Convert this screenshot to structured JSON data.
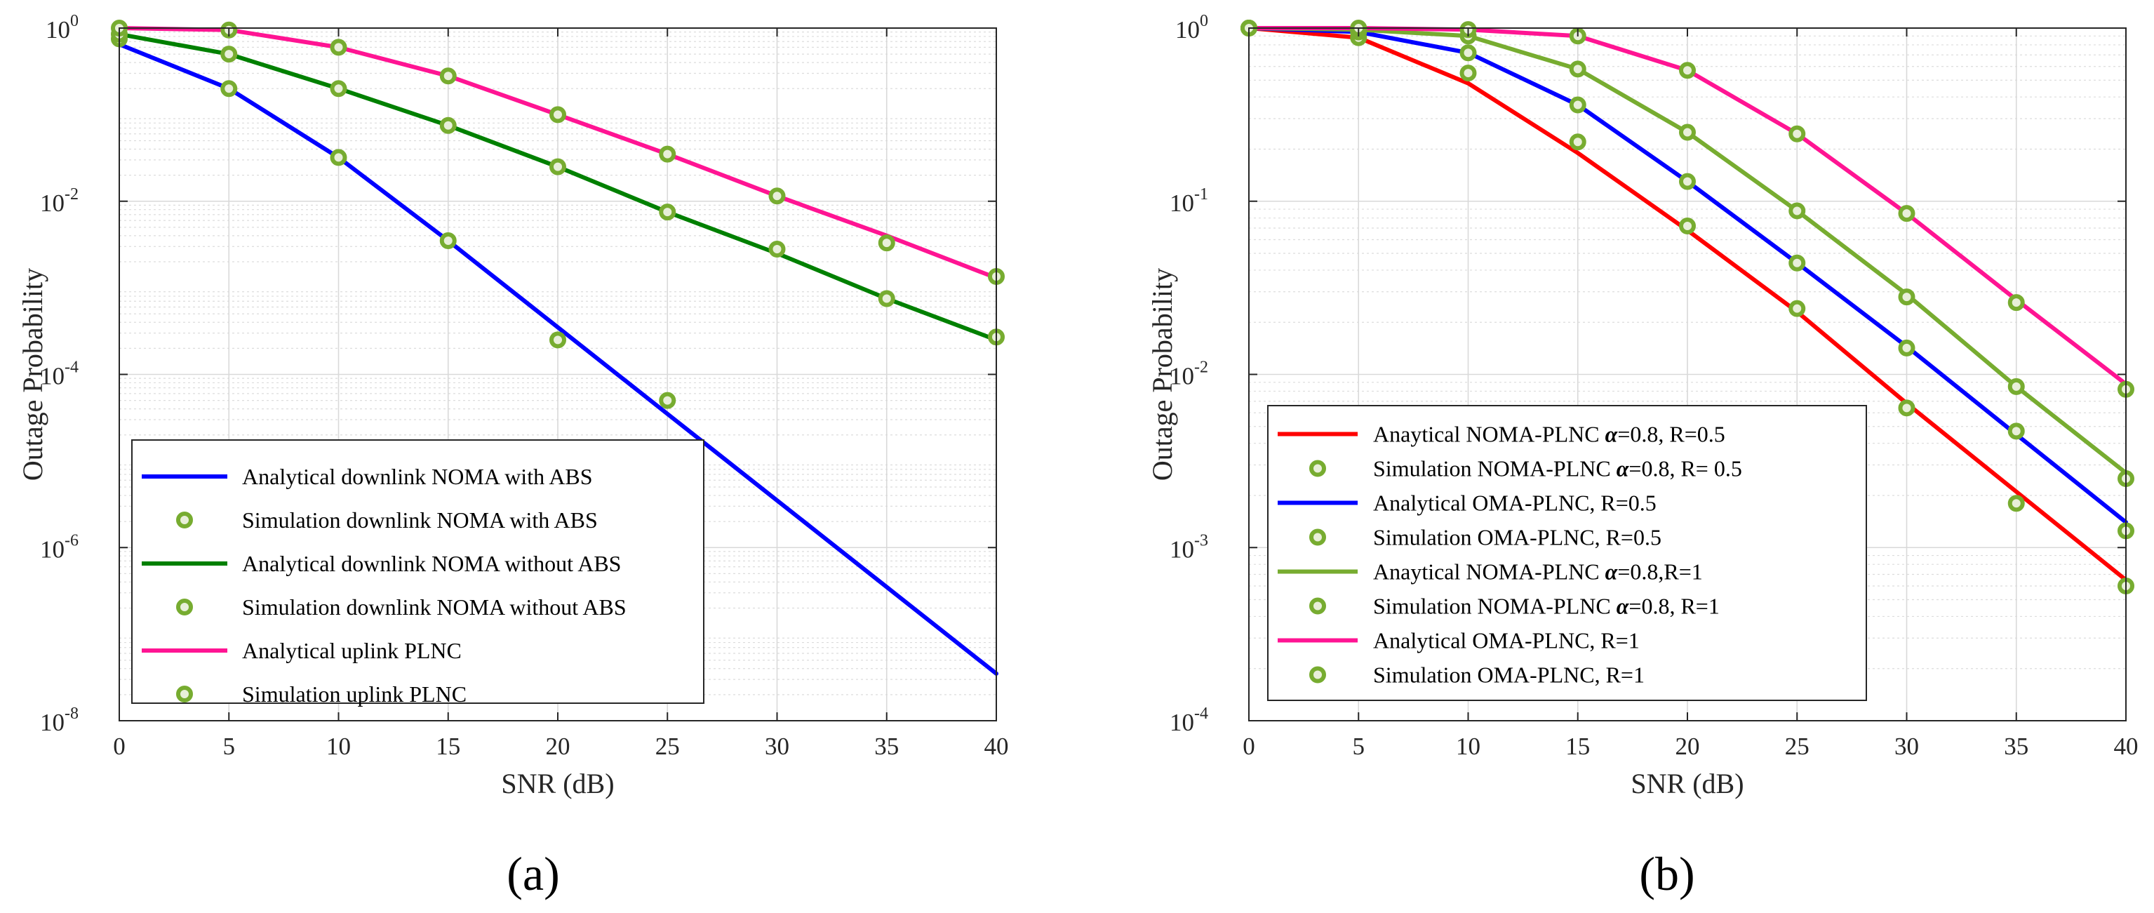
{
  "chart_data": [
    {
      "type": "line",
      "panel_label": "(a)",
      "xlabel": "SNR  (dB)",
      "ylabel": "Outage Probability",
      "yscale": "log",
      "xlim": [
        0,
        40
      ],
      "ylim": [
        1e-08,
        1
      ],
      "grid": true,
      "legend_position": "bottom-left",
      "x_ticks": [
        "0",
        "5",
        "10",
        "15",
        "20",
        "25",
        "30",
        "35",
        "40"
      ],
      "y_ticks": [
        {
          "base": "10",
          "exp": "0"
        },
        {
          "base": "10",
          "exp": "-2"
        },
        {
          "base": "10",
          "exp": "-4"
        },
        {
          "base": "10",
          "exp": "-6"
        },
        {
          "base": "10",
          "exp": "-8"
        }
      ],
      "series": [
        {
          "name": "Analytical downlink NOMA with ABS",
          "style": "line",
          "color": "#0000ff",
          "x": [
            0,
            5,
            10,
            15,
            20,
            25,
            30,
            35,
            40
          ],
          "y": [
            0.65,
            0.2,
            0.032,
            0.0035,
            0.00035,
            3.5e-05,
            3.5e-06,
            3.5e-07,
            3.5e-08
          ]
        },
        {
          "name": "Simulation downlink NOMA with ABS",
          "style": "marker",
          "color": "#77ac30",
          "x": [
            0,
            5,
            10,
            15,
            20,
            25
          ],
          "y": [
            0.75,
            0.2,
            0.032,
            0.0035,
            0.00025,
            5e-05
          ]
        },
        {
          "name": "Analytical downlink NOMA without ABS",
          "style": "line",
          "color": "#008000",
          "x": [
            0,
            5,
            10,
            15,
            20,
            25,
            30,
            35,
            40
          ],
          "y": [
            0.85,
            0.5,
            0.2,
            0.075,
            0.025,
            0.0075,
            0.0025,
            0.00075,
            0.00025
          ]
        },
        {
          "name": "Simulation downlink NOMA without ABS",
          "style": "marker",
          "color": "#77ac30",
          "x": [
            0,
            5,
            10,
            15,
            20,
            25,
            30,
            35,
            40
          ],
          "y": [
            0.85,
            0.5,
            0.2,
            0.075,
            0.025,
            0.0075,
            0.0028,
            0.00075,
            0.00027
          ]
        },
        {
          "name": "Analytical uplink PLNC",
          "style": "line",
          "color": "#ff1493",
          "x": [
            0,
            5,
            10,
            15,
            20,
            25,
            30,
            35,
            40
          ],
          "y": [
            1.0,
            0.95,
            0.6,
            0.28,
            0.1,
            0.035,
            0.0115,
            0.004,
            0.0013
          ]
        },
        {
          "name": "Simulation uplink PLNC",
          "style": "marker",
          "color": "#77ac30",
          "x": [
            0,
            5,
            10,
            15,
            20,
            25,
            30,
            35,
            40
          ],
          "y": [
            1.0,
            0.95,
            0.6,
            0.28,
            0.1,
            0.035,
            0.0115,
            0.0033,
            0.00135
          ]
        }
      ]
    },
    {
      "type": "line",
      "panel_label": "(b)",
      "xlabel": "SNR (dB)",
      "ylabel": "Outage Probability",
      "yscale": "log",
      "xlim": [
        0,
        40
      ],
      "ylim": [
        0.0001,
        1
      ],
      "grid": true,
      "legend_position": "bottom-left",
      "x_ticks": [
        "0",
        "5",
        "10",
        "15",
        "20",
        "25",
        "30",
        "35",
        "40"
      ],
      "y_ticks": [
        {
          "base": "10",
          "exp": "0"
        },
        {
          "base": "10",
          "exp": "-1"
        },
        {
          "base": "10",
          "exp": "-2"
        },
        {
          "base": "10",
          "exp": "-3"
        },
        {
          "base": "10",
          "exp": "-4"
        }
      ],
      "alpha_symbol": "α",
      "series": [
        {
          "name_pre": "Anaytical NOMA-PLNC ",
          "name_post": "=0.8, R=0.5",
          "style": "line",
          "color": "#ff0000",
          "x": [
            0,
            5,
            10,
            15,
            20,
            25,
            30,
            35,
            40
          ],
          "y": [
            1.0,
            0.88,
            0.48,
            0.19,
            0.068,
            0.023,
            0.0068,
            0.0021,
            0.00065
          ]
        },
        {
          "name_pre": "Simulation NOMA-PLNC ",
          "name_post": "=0.8, R= 0.5",
          "style": "marker",
          "color": "#77ac30",
          "x": [
            0,
            5,
            10,
            15,
            20,
            25,
            30,
            35,
            40
          ],
          "y": [
            1.0,
            0.88,
            0.55,
            0.22,
            0.072,
            0.024,
            0.0064,
            0.0018,
            0.0006
          ]
        },
        {
          "name": "Analytical OMA-PLNC, R=0.5",
          "style": "line",
          "color": "#0000ff",
          "x": [
            0,
            5,
            10,
            15,
            20,
            25,
            30,
            35,
            40
          ],
          "y": [
            1.0,
            0.95,
            0.72,
            0.36,
            0.13,
            0.044,
            0.0145,
            0.0045,
            0.0014
          ]
        },
        {
          "name": "Simulation OMA-PLNC, R=0.5",
          "style": "marker",
          "color": "#77ac30",
          "x": [
            0,
            5,
            10,
            15,
            20,
            25,
            30,
            35,
            40
          ],
          "y": [
            1.0,
            0.95,
            0.72,
            0.36,
            0.13,
            0.044,
            0.0142,
            0.0047,
            0.00125
          ]
        },
        {
          "name_pre": "Anaytical NOMA-PLNC ",
          "name_post": "=0.8,R=1",
          "style": "line",
          "color": "#77ac30",
          "x": [
            0,
            5,
            10,
            15,
            20,
            25,
            30,
            35,
            40
          ],
          "y": [
            1.0,
            0.98,
            0.9,
            0.58,
            0.25,
            0.088,
            0.029,
            0.0085,
            0.0027
          ]
        },
        {
          "name_pre": "Simulation NOMA-PLNC ",
          "name_post": "=0.8, R=1",
          "style": "marker",
          "color": "#77ac30",
          "x": [
            0,
            5,
            10,
            15,
            20,
            25,
            30,
            35,
            40
          ],
          "y": [
            1.0,
            0.98,
            0.9,
            0.58,
            0.25,
            0.088,
            0.028,
            0.0085,
            0.0025
          ]
        },
        {
          "name": "Analytical OMA-PLNC, R=1",
          "style": "line",
          "color": "#ff1493",
          "x": [
            0,
            5,
            10,
            15,
            20,
            25,
            30,
            35,
            40
          ],
          "y": [
            1.0,
            1.0,
            0.98,
            0.9,
            0.57,
            0.245,
            0.085,
            0.027,
            0.0088
          ]
        },
        {
          "name": "Simulation OMA-PLNC, R=1",
          "style": "marker",
          "color": "#77ac30",
          "x": [
            0,
            5,
            10,
            15,
            20,
            25,
            30,
            35,
            40
          ],
          "y": [
            1.0,
            1.0,
            0.98,
            0.9,
            0.57,
            0.245,
            0.085,
            0.026,
            0.0082
          ]
        }
      ]
    }
  ]
}
